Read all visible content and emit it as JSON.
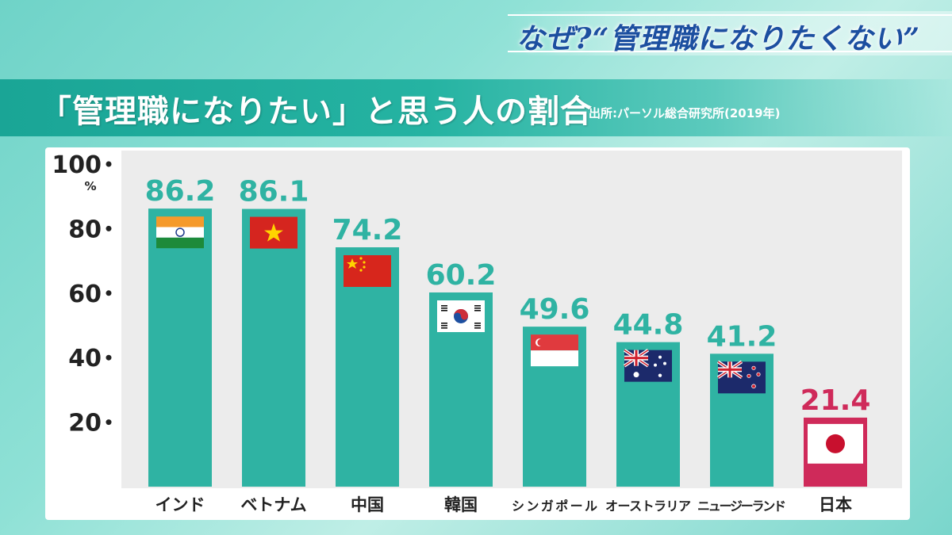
{
  "header": {
    "banner_title": "なぜ?“管理職になりたくない”",
    "heading": "「管理職になりたい」と思う人の割合",
    "source": "出所:パーソル総合研究所(2019年)"
  },
  "colors": {
    "bar": "#2fb3a3",
    "highlight": "#cf2a5a",
    "value_text": "#2fb3a3",
    "highlight_text": "#cf2a5a"
  },
  "chart_data": {
    "type": "bar",
    "title": "「管理職になりたい」と思う人の割合",
    "unit": "%",
    "categories": [
      "インド",
      "ベトナム",
      "中国",
      "韓国",
      "シンガポール",
      "オーストラリア",
      "ニュージーランド",
      "日本"
    ],
    "values": [
      86.2,
      86.1,
      74.2,
      60.2,
      49.6,
      44.8,
      41.2,
      21.4
    ],
    "value_labels": [
      "86.2",
      "86.1",
      "74.2",
      "60.2",
      "49.6",
      "44.8",
      "41.2",
      "21.4"
    ],
    "flags": [
      "india-flag-icon",
      "vietnam-flag-icon",
      "china-flag-icon",
      "korea-flag-icon",
      "singapore-flag-icon",
      "australia-flag-icon",
      "new-zealand-flag-icon",
      "japan-flag-icon"
    ],
    "highlight_category": "日本",
    "yticks": [
      20,
      40,
      60,
      80,
      100
    ],
    "ytick_labels": [
      "20",
      "40",
      "60",
      "80",
      "100"
    ],
    "ylim": [
      0,
      100
    ],
    "grid": false
  }
}
